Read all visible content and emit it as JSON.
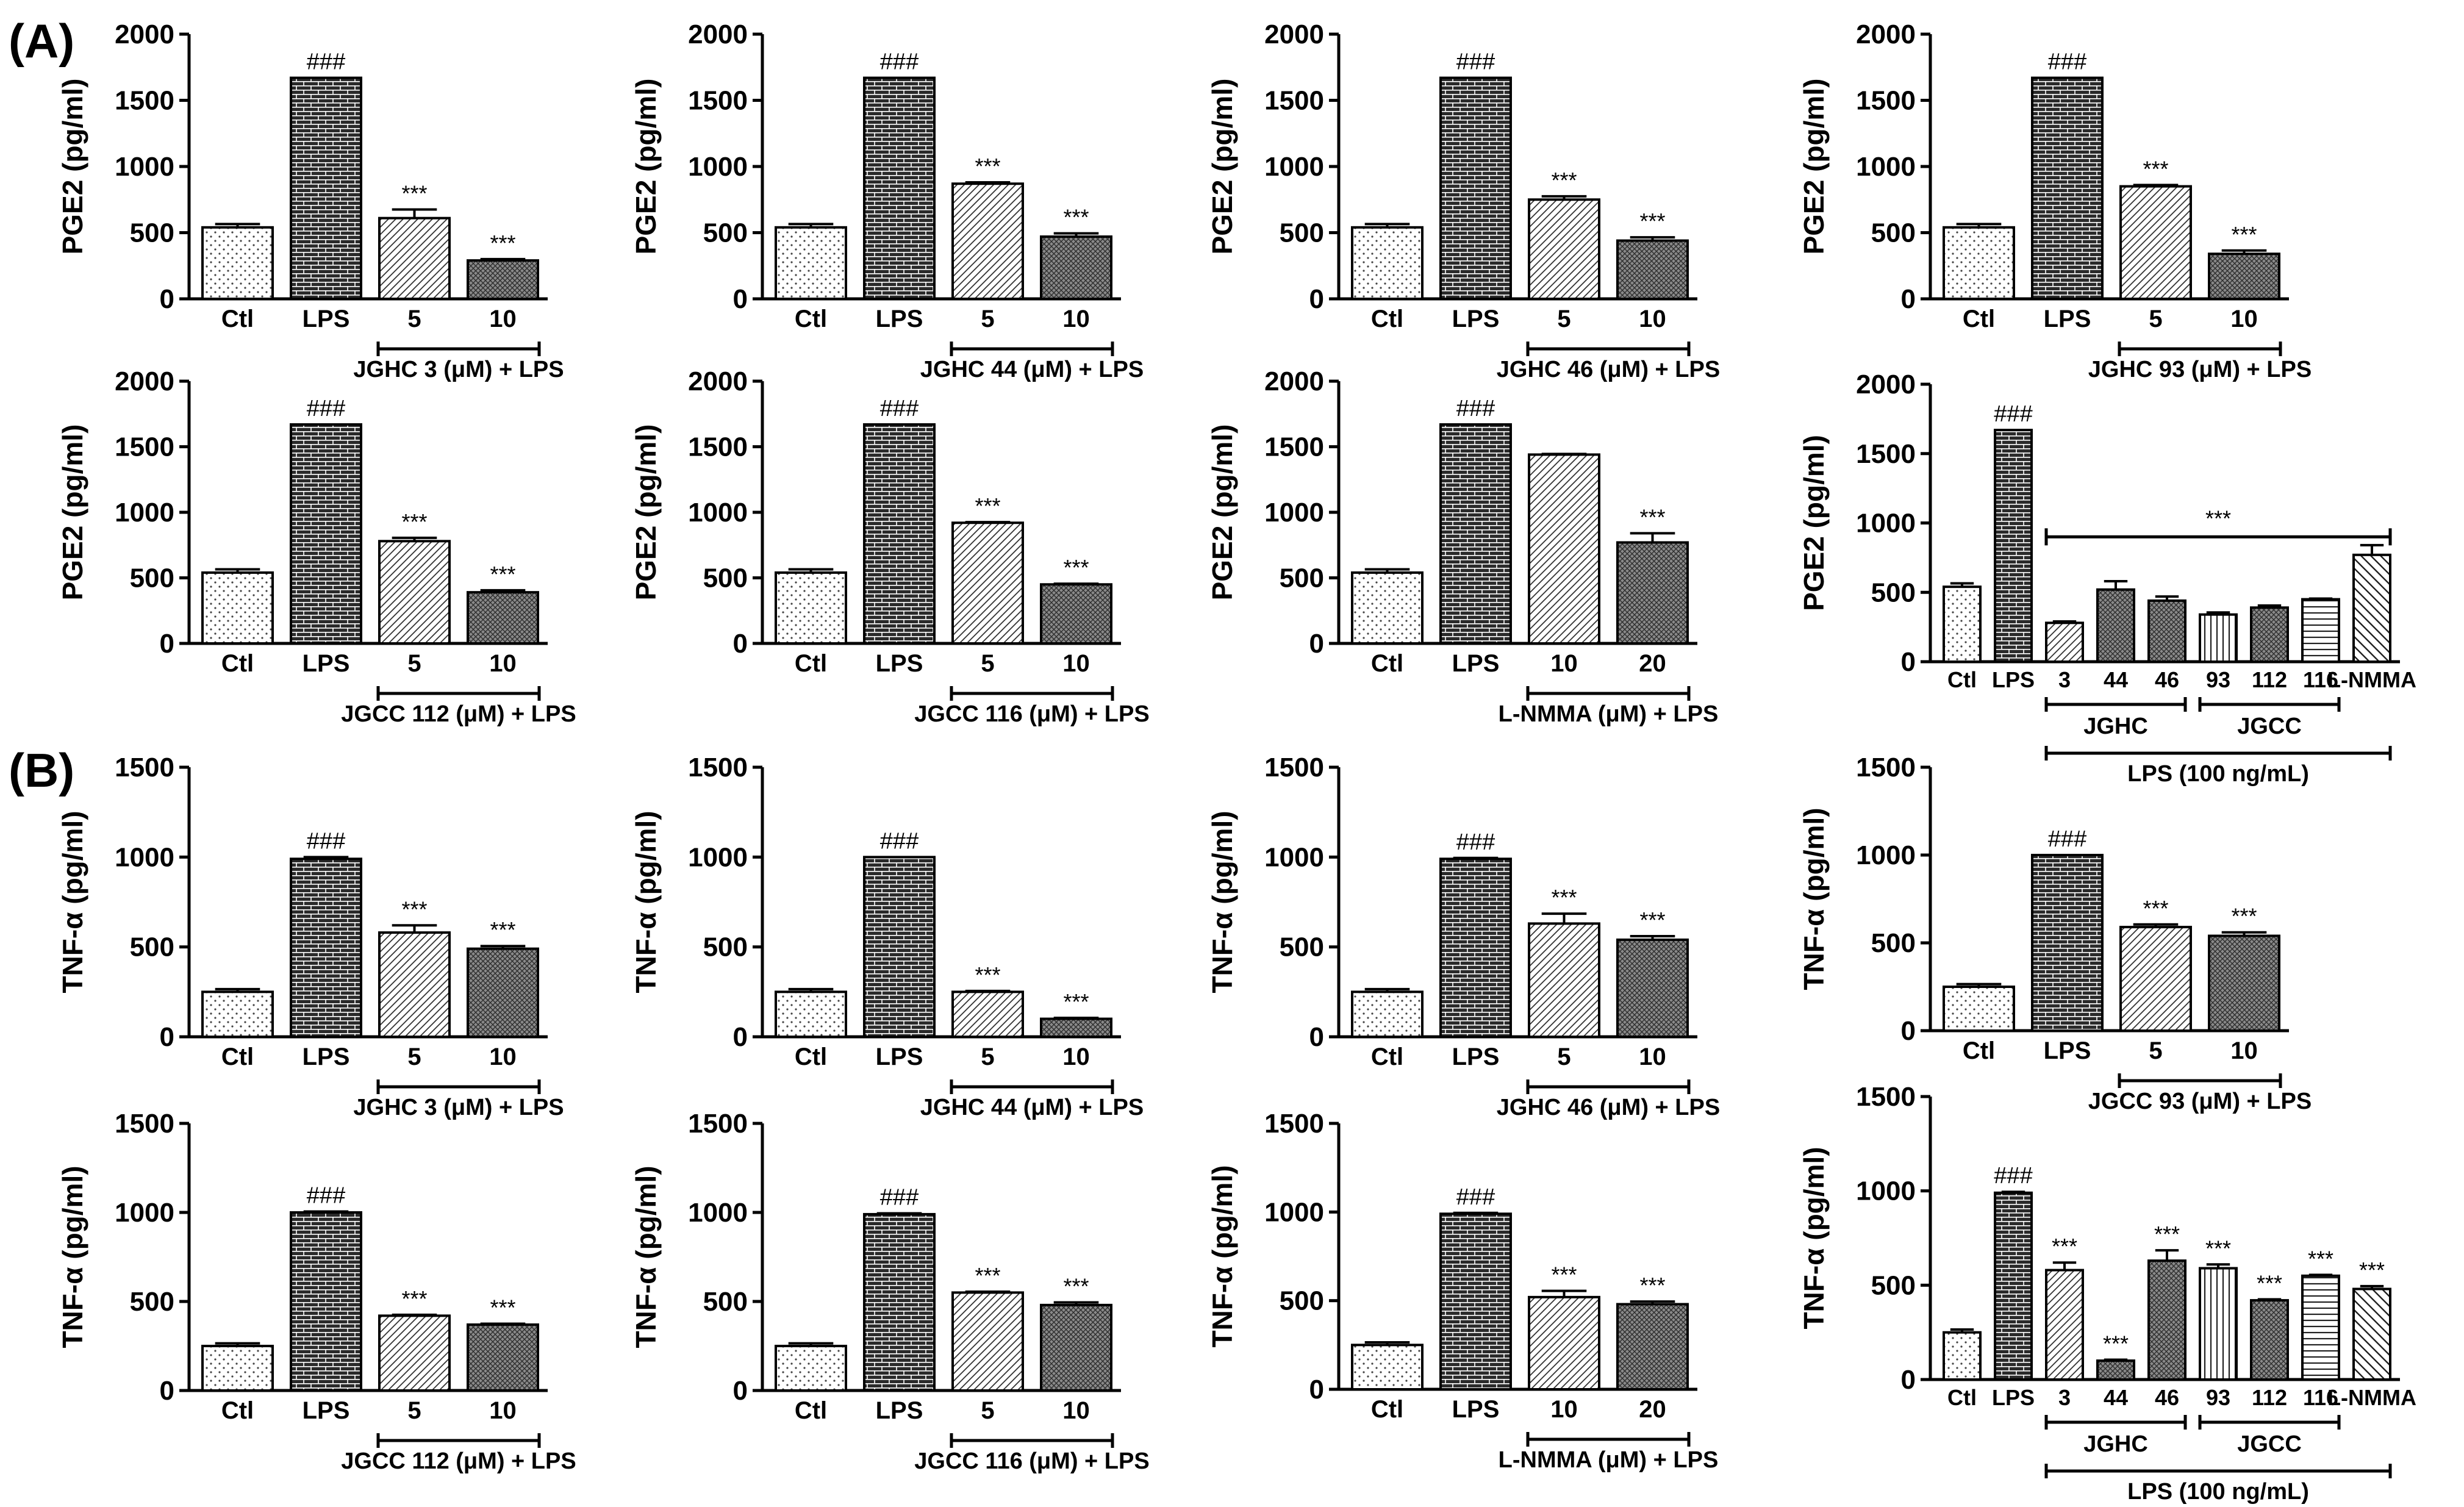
{
  "figure": {
    "panel_labels": [
      "(A)",
      "(B)"
    ],
    "colors": {
      "ink": "#000000",
      "background": "#ffffff"
    }
  },
  "chart_data": [
    {
      "type": "bar",
      "title": "",
      "ylabel": "PGE2 (pg/ml)",
      "ylim": [
        0,
        2000
      ],
      "yticks": [
        0,
        500,
        1000,
        1500,
        2000
      ],
      "categories": [
        "Ctl",
        "LPS",
        "5",
        "10"
      ],
      "values": [
        540,
        1670,
        610,
        290
      ],
      "errors": [
        25,
        0,
        65,
        10
      ],
      "annotations": [
        "",
        "###",
        "***",
        "***"
      ],
      "patterns": [
        "dots",
        "brick",
        "diag",
        "dense"
      ],
      "group": {
        "label": "JGHC 3 (μM) + LPS",
        "from": 2,
        "to": 3
      }
    },
    {
      "type": "bar",
      "title": "",
      "ylabel": "PGE2 (pg/ml)",
      "ylim": [
        0,
        2000
      ],
      "yticks": [
        0,
        500,
        1000,
        1500,
        2000
      ],
      "categories": [
        "Ctl",
        "LPS",
        "5",
        "10"
      ],
      "values": [
        540,
        1670,
        870,
        470
      ],
      "errors": [
        25,
        0,
        10,
        25
      ],
      "annotations": [
        "",
        "###",
        "***",
        "***"
      ],
      "patterns": [
        "dots",
        "brick",
        "diag",
        "dense"
      ],
      "group": {
        "label": "JGHC 44 (μM) + LPS",
        "from": 2,
        "to": 3
      }
    },
    {
      "type": "bar",
      "title": "",
      "ylabel": "PGE2 (pg/ml)",
      "ylim": [
        0,
        2000
      ],
      "yticks": [
        0,
        500,
        1000,
        1500,
        2000
      ],
      "categories": [
        "Ctl",
        "LPS",
        "5",
        "10"
      ],
      "values": [
        540,
        1670,
        750,
        440
      ],
      "errors": [
        25,
        0,
        25,
        25
      ],
      "annotations": [
        "",
        "###",
        "***",
        "***"
      ],
      "patterns": [
        "dots",
        "brick",
        "diag",
        "dense"
      ],
      "group": {
        "label": "JGHC 46 (μM) + LPS",
        "from": 2,
        "to": 3
      }
    },
    {
      "type": "bar",
      "title": "",
      "ylabel": "PGE2 (pg/ml)",
      "ylim": [
        0,
        2000
      ],
      "yticks": [
        0,
        500,
        1000,
        1500,
        2000
      ],
      "categories": [
        "Ctl",
        "LPS",
        "5",
        "10"
      ],
      "values": [
        540,
        1670,
        850,
        340
      ],
      "errors": [
        25,
        0,
        10,
        25
      ],
      "annotations": [
        "",
        "###",
        "***",
        "***"
      ],
      "patterns": [
        "dots",
        "brick",
        "diag",
        "dense"
      ],
      "group": {
        "label": "JGHC 93 (μM) + LPS",
        "from": 2,
        "to": 3
      }
    },
    {
      "type": "bar",
      "title": "",
      "ylabel": "PGE2 (pg/ml)",
      "ylim": [
        0,
        2000
      ],
      "yticks": [
        0,
        500,
        1000,
        1500,
        2000
      ],
      "categories": [
        "Ctl",
        "LPS",
        "5",
        "10"
      ],
      "values": [
        540,
        1670,
        780,
        390
      ],
      "errors": [
        25,
        0,
        25,
        15
      ],
      "annotations": [
        "",
        "###",
        "***",
        "***"
      ],
      "patterns": [
        "dots",
        "brick",
        "diag",
        "dense"
      ],
      "group": {
        "label": "JGCC 112 (μM) + LPS",
        "from": 2,
        "to": 3
      }
    },
    {
      "type": "bar",
      "title": "",
      "ylabel": "PGE2 (pg/ml)",
      "ylim": [
        0,
        2000
      ],
      "yticks": [
        0,
        500,
        1000,
        1500,
        2000
      ],
      "categories": [
        "Ctl",
        "LPS",
        "5",
        "10"
      ],
      "values": [
        540,
        1670,
        920,
        450
      ],
      "errors": [
        25,
        0,
        5,
        5
      ],
      "annotations": [
        "",
        "###",
        "***",
        "***"
      ],
      "patterns": [
        "dots",
        "brick",
        "diag",
        "dense"
      ],
      "group": {
        "label": "JGCC 116 (μM) + LPS",
        "from": 2,
        "to": 3
      }
    },
    {
      "type": "bar",
      "title": "",
      "ylabel": "PGE2 (pg/ml)",
      "ylim": [
        0,
        2000
      ],
      "yticks": [
        0,
        500,
        1000,
        1500,
        2000
      ],
      "categories": [
        "Ctl",
        "LPS",
        "10",
        "20"
      ],
      "values": [
        540,
        1670,
        1440,
        770
      ],
      "errors": [
        25,
        0,
        5,
        70
      ],
      "annotations": [
        "",
        "###",
        "",
        "***"
      ],
      "patterns": [
        "dots",
        "brick",
        "diag",
        "dense"
      ],
      "group": {
        "label": "L-NMMA (μM) + LPS",
        "from": 2,
        "to": 3
      }
    },
    {
      "type": "bar",
      "title": "",
      "ylabel": "PGE2 (pg/ml)",
      "ylim": [
        0,
        2000
      ],
      "yticks": [
        0,
        500,
        1000,
        1500,
        2000
      ],
      "categories": [
        "Ctl",
        "LPS",
        "3",
        "44",
        "46",
        "93",
        "112",
        "116",
        "L-NMMA"
      ],
      "values": [
        540,
        1670,
        280,
        520,
        440,
        340,
        390,
        450,
        770
      ],
      "errors": [
        25,
        0,
        10,
        60,
        30,
        15,
        15,
        5,
        70
      ],
      "annotations": [
        "",
        "###",
        "",
        "",
        "",
        "",
        "",
        "",
        ""
      ],
      "patterns": [
        "dots",
        "brick",
        "diag",
        "dense",
        "dense",
        "vert",
        "dense",
        "horiz",
        "back"
      ],
      "span_annotation": {
        "label": "***",
        "from": 2,
        "to": 8
      },
      "subgroups": [
        {
          "label": "JGHC",
          "from": 2,
          "to": 4
        },
        {
          "label": "JGCC",
          "from": 5,
          "to": 7
        }
      ],
      "group": {
        "label": "LPS (100 ng/mL)",
        "from": 2,
        "to": 8
      }
    },
    {
      "type": "bar",
      "title": "",
      "ylabel": "TNF-α (pg/ml)",
      "ylim": [
        0,
        1500
      ],
      "yticks": [
        0,
        500,
        1000,
        1500
      ],
      "categories": [
        "Ctl",
        "LPS",
        "5",
        "10"
      ],
      "values": [
        250,
        990,
        580,
        490
      ],
      "errors": [
        15,
        10,
        40,
        15
      ],
      "annotations": [
        "",
        "###",
        "***",
        "***"
      ],
      "patterns": [
        "dots",
        "brick",
        "diag",
        "dense"
      ],
      "group": {
        "label": "JGHC 3 (μM) + LPS",
        "from": 2,
        "to": 3
      }
    },
    {
      "type": "bar",
      "title": "",
      "ylabel": "TNF-α (pg/ml)",
      "ylim": [
        0,
        1500
      ],
      "yticks": [
        0,
        500,
        1000,
        1500
      ],
      "categories": [
        "Ctl",
        "LPS",
        "5",
        "10"
      ],
      "values": [
        250,
        1000,
        250,
        100
      ],
      "errors": [
        15,
        0,
        5,
        5
      ],
      "annotations": [
        "",
        "###",
        "***",
        "***"
      ],
      "patterns": [
        "dots",
        "brick",
        "diag",
        "dense"
      ],
      "group": {
        "label": "JGHC 44 (μM) + LPS",
        "from": 2,
        "to": 3
      }
    },
    {
      "type": "bar",
      "title": "",
      "ylabel": "TNF-α (pg/ml)",
      "ylim": [
        0,
        1500
      ],
      "yticks": [
        0,
        500,
        1000,
        1500
      ],
      "categories": [
        "Ctl",
        "LPS",
        "5",
        "10"
      ],
      "values": [
        250,
        990,
        630,
        540
      ],
      "errors": [
        15,
        5,
        55,
        20
      ],
      "annotations": [
        "",
        "###",
        "***",
        "***"
      ],
      "patterns": [
        "dots",
        "brick",
        "diag",
        "dense"
      ],
      "group": {
        "label": "JGHC 46 (μM) + LPS",
        "from": 2,
        "to": 3
      }
    },
    {
      "type": "bar",
      "title": "",
      "ylabel": "TNF-α (pg/ml)",
      "ylim": [
        0,
        1500
      ],
      "yticks": [
        0,
        500,
        1000,
        1500
      ],
      "categories": [
        "Ctl",
        "LPS",
        "5",
        "10"
      ],
      "values": [
        250,
        1000,
        590,
        540
      ],
      "errors": [
        15,
        0,
        15,
        20
      ],
      "annotations": [
        "",
        "###",
        "***",
        "***"
      ],
      "patterns": [
        "dots",
        "brick",
        "diag",
        "dense"
      ],
      "group": {
        "label": "JGCC 93 (μM) + LPS",
        "from": 2,
        "to": 3
      }
    },
    {
      "type": "bar",
      "title": "",
      "ylabel": "TNF-α (pg/ml)",
      "ylim": [
        0,
        1500
      ],
      "yticks": [
        0,
        500,
        1000,
        1500
      ],
      "categories": [
        "Ctl",
        "LPS",
        "5",
        "10"
      ],
      "values": [
        250,
        1000,
        420,
        370
      ],
      "errors": [
        15,
        5,
        5,
        5
      ],
      "annotations": [
        "",
        "###",
        "***",
        "***"
      ],
      "patterns": [
        "dots",
        "brick",
        "diag",
        "dense"
      ],
      "group": {
        "label": "JGCC 112 (μM) + LPS",
        "from": 2,
        "to": 3
      }
    },
    {
      "type": "bar",
      "title": "",
      "ylabel": "TNF-α (pg/ml)",
      "ylim": [
        0,
        1500
      ],
      "yticks": [
        0,
        500,
        1000,
        1500
      ],
      "categories": [
        "Ctl",
        "LPS",
        "5",
        "10"
      ],
      "values": [
        250,
        990,
        550,
        480
      ],
      "errors": [
        15,
        5,
        5,
        15
      ],
      "annotations": [
        "",
        "###",
        "***",
        "***"
      ],
      "patterns": [
        "dots",
        "brick",
        "diag",
        "dense"
      ],
      "group": {
        "label": "JGCC 116 (μM) + LPS",
        "from": 2,
        "to": 3
      }
    },
    {
      "type": "bar",
      "title": "",
      "ylabel": "TNF-α (pg/ml)",
      "ylim": [
        0,
        1500
      ],
      "yticks": [
        0,
        500,
        1000,
        1500
      ],
      "categories": [
        "Ctl",
        "LPS",
        "10",
        "20"
      ],
      "values": [
        250,
        990,
        520,
        480
      ],
      "errors": [
        15,
        5,
        35,
        15
      ],
      "annotations": [
        "",
        "###",
        "***",
        "***"
      ],
      "patterns": [
        "dots",
        "brick",
        "diag",
        "dense"
      ],
      "group": {
        "label": "L-NMMA (μM) + LPS",
        "from": 2,
        "to": 3
      }
    },
    {
      "type": "bar",
      "title": "",
      "ylabel": "TNF-α (pg/ml)",
      "ylim": [
        0,
        1500
      ],
      "yticks": [
        0,
        500,
        1000,
        1500
      ],
      "categories": [
        "Ctl",
        "LPS",
        "3",
        "44",
        "46",
        "93",
        "112",
        "116",
        "L-NMMA"
      ],
      "values": [
        250,
        990,
        580,
        100,
        630,
        590,
        420,
        550,
        480
      ],
      "errors": [
        15,
        5,
        40,
        5,
        55,
        20,
        5,
        5,
        15
      ],
      "annotations": [
        "",
        "###",
        "***",
        "***",
        "***",
        "***",
        "***",
        "***",
        "***"
      ],
      "patterns": [
        "dots",
        "brick",
        "diag",
        "dense",
        "dense",
        "vert",
        "dense",
        "horiz",
        "back"
      ],
      "subgroups": [
        {
          "label": "JGHC",
          "from": 2,
          "to": 4
        },
        {
          "label": "JGCC",
          "from": 5,
          "to": 7
        }
      ],
      "group": {
        "label": "LPS (100 ng/mL)",
        "from": 2,
        "to": 8
      }
    }
  ]
}
